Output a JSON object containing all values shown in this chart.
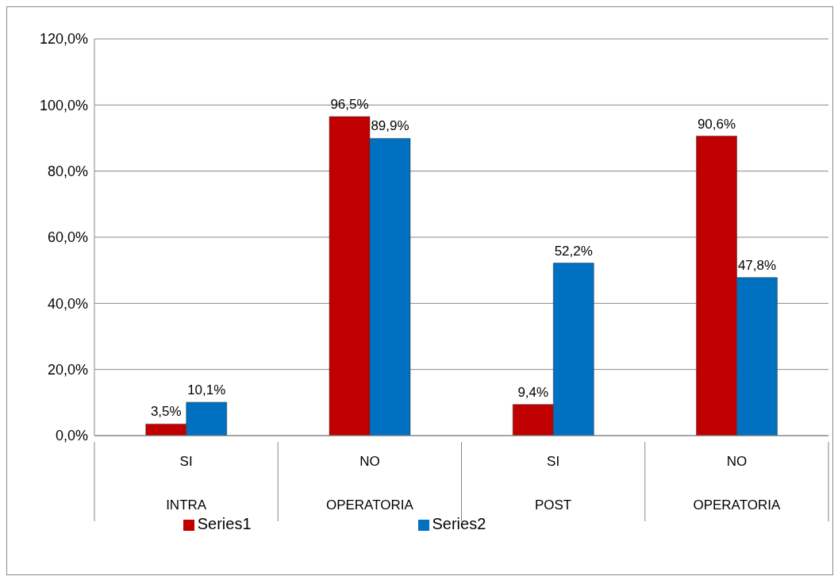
{
  "chart_data": {
    "type": "bar",
    "categories": [
      "SI",
      "NO",
      "SI",
      "NO"
    ],
    "annotations": [
      "INTRA",
      "OPERATORIA",
      "POST",
      "OPERATORIA"
    ],
    "series": [
      {
        "name": "Series1",
        "color": "#c00000",
        "values": [
          3.5,
          96.5,
          9.4,
          90.6
        ],
        "value_labels": [
          "3,5%",
          "96,5%",
          "9,4%",
          "90,6%"
        ]
      },
      {
        "name": "Series2",
        "color": "#0070c0",
        "values": [
          10.1,
          89.9,
          52.2,
          47.8
        ],
        "value_labels": [
          "10,1%",
          "89,9%",
          "52,2%",
          "47,8%"
        ]
      }
    ],
    "ylim": [
      0,
      120
    ],
    "yticks": [
      {
        "value": 0,
        "label": "0,0%"
      },
      {
        "value": 20,
        "label": "20,0%"
      },
      {
        "value": 40,
        "label": "40,0%"
      },
      {
        "value": 60,
        "label": "60,0%"
      },
      {
        "value": 80,
        "label": "80,0%"
      },
      {
        "value": 100,
        "label": "100,0%"
      },
      {
        "value": 120,
        "label": "120,0%"
      }
    ],
    "grid": "y",
    "legend": "bottom"
  }
}
